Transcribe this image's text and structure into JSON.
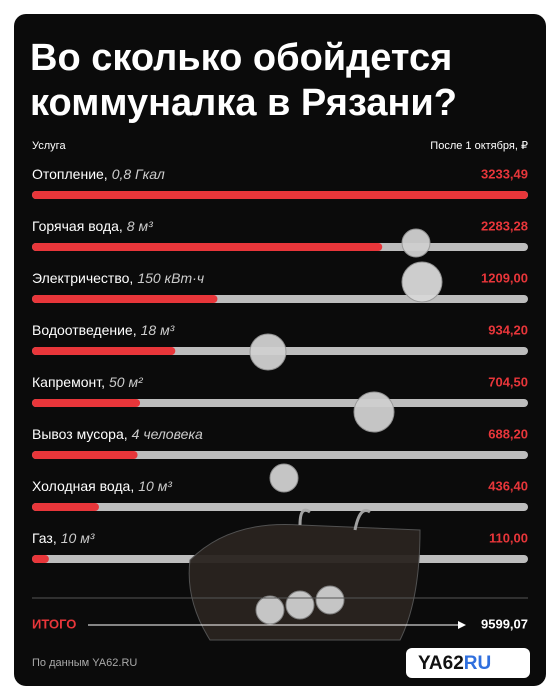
{
  "chart_data": {
    "type": "hbar",
    "title_lines": [
      "Во сколько обойдется",
      "коммуналка в Рязани?"
    ],
    "category_header": "Услуга",
    "value_header": "После 1 октября, ₽",
    "categories": [
      "Отопление,",
      "Горячая вода,",
      "Электричество,",
      "Водоотведение,",
      "Капремонт,",
      "Вывоз мусора,",
      "Холодная вода,",
      "Газ,"
    ],
    "details": [
      "0,8 Гкал",
      "8 м³",
      "150 кВт·ч",
      "18 м³",
      "50 м²",
      "4 человека",
      "10 м³",
      "10 м³"
    ],
    "values": [
      3233.49,
      2283.28,
      1209.0,
      934.2,
      704.5,
      688.2,
      436.4,
      110.0
    ],
    "value_labels": [
      "3233,49",
      "2283,28",
      "1209,00",
      "934,20",
      "704,50",
      "688,20",
      "436,40",
      "110,00"
    ],
    "xlim": [
      0,
      3233.49
    ],
    "color": "#e8363a",
    "track_color": "#bdbdbd",
    "total_label": "ИТОГО",
    "total": 9599.07,
    "total_value_label": "9599,07",
    "source": "По данным YA62.RU",
    "logo": [
      "YA62",
      "RU"
    ]
  }
}
